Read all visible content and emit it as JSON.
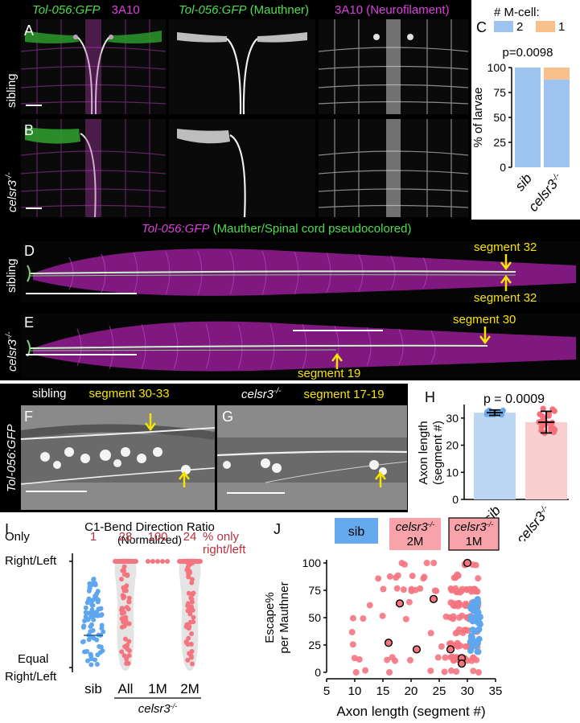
{
  "panels": {
    "A": "A",
    "B": "B",
    "C": "C",
    "D": "D",
    "E": "E",
    "F": "F",
    "G": "G",
    "H": "H",
    "I": "I",
    "J": "J"
  },
  "top_header": {
    "merge_green": "Tol-056:GFP",
    "merge_magenta": "3A10",
    "middle_green": "Tol-056:GFP",
    "middle_paren": "(Mauthner)",
    "right": "3A10 (Neurofilament)"
  },
  "row_labels": {
    "sibling": "sibling",
    "mutant": "celsr3",
    "mutant_sup": "-/-",
    "tol": "Tol-056:GFP"
  },
  "strip_header": {
    "magenta": "Tol-056:GFP",
    "green": "(Mauther/Spinal cord pseudocolored)"
  },
  "annotations": {
    "d_top": "segment 32",
    "d_bottom": "segment 32",
    "e_right": "segment 30",
    "e_left": "segment 19",
    "f_title": "sibling",
    "f_seg": "segment 30-33",
    "g_title": "celsr3",
    "g_sup": "-/-",
    "g_seg": "segment 17-19"
  },
  "chart_data": [
    {
      "panel": "C",
      "type": "bar",
      "stacked": true,
      "legend_title": "# M-cell:",
      "categories": [
        "sib",
        "celsr3-/-"
      ],
      "category_labels": {
        "sib": "sib",
        "mut": "celsr3",
        "mut_sup": "-/-"
      },
      "series": [
        {
          "name": "2",
          "color": "#9dc3ee",
          "values": [
            100,
            88
          ]
        },
        {
          "name": "1",
          "color": "#f8c08a",
          "values": [
            0,
            12
          ]
        }
      ],
      "ylabel": "% of larvae",
      "ylim": [
        0,
        100
      ],
      "yticks": [
        "0",
        "25",
        "50",
        "75",
        "100"
      ],
      "annotation": "p=0.0098"
    },
    {
      "panel": "H",
      "type": "bar",
      "categories": [
        "sib",
        "celsr3-/-"
      ],
      "category_labels": {
        "sib": "sib",
        "mut": "celsr3",
        "mut_sup": "-/-"
      },
      "values": [
        32,
        28.5
      ],
      "errors": [
        1,
        4
      ],
      "colors": [
        "#bcd6f3",
        "#f9cece"
      ],
      "point_colors": [
        "#6aa7ea",
        "#f4717c"
      ],
      "ylabel_1": "Axon length",
      "ylabel_2": "(segment #)",
      "ylim": [
        0,
        35
      ],
      "yticks": [
        "0",
        "10",
        "20",
        "30"
      ],
      "annotation": "p = 0.0009"
    },
    {
      "panel": "I",
      "type": "scatter",
      "title_1": "C1-Bend Direction Ratio",
      "title_2": "(Normalized)",
      "categories": [
        "sib",
        "All",
        "1M",
        "2M"
      ],
      "group_label_1": "celsr3",
      "group_label_sup": "-/-",
      "pct_only": [
        "1",
        "28",
        "100",
        "24"
      ],
      "pct_suffix_1": "% only",
      "pct_suffix_2": "right/left",
      "ytick_top_1": "Only",
      "ytick_top_2": "Right/Left",
      "ytick_bottom_1": "Equal",
      "ytick_bottom_2": "Right/Left",
      "colors": {
        "sib": "#5ea6ee",
        "mut": "#f47480"
      }
    },
    {
      "panel": "J",
      "type": "scatter",
      "legend": {
        "sib": "sib",
        "mut2_1": "celsr3",
        "mut2_sup": "-/-",
        "mut2_2": "2M",
        "mut1_1": "celsr3",
        "mut1_sup": "-/-",
        "mut1_2": "1M"
      },
      "xlabel": "Axon length (segment #)",
      "ylabel_1": "Escape%",
      "ylabel_2": "per Mauthner",
      "xlim": [
        5,
        35
      ],
      "ylim": [
        0,
        100
      ],
      "xticks": [
        "5",
        "10",
        "15",
        "20",
        "25",
        "30",
        "35"
      ],
      "yticks": [
        "0",
        "25",
        "50",
        "75",
        "100"
      ],
      "one_m_points": [
        [
          16,
          27
        ],
        [
          18,
          63
        ],
        [
          21,
          21
        ],
        [
          24,
          67
        ],
        [
          27,
          21
        ],
        [
          29,
          13
        ],
        [
          29,
          8
        ],
        [
          30,
          100
        ]
      ],
      "colors": {
        "sib": "#5ea6ee",
        "mut": "#f47480",
        "legend_sib_bg": "#66aaee",
        "legend_mut_bg": "#f7a3a9"
      }
    }
  ]
}
